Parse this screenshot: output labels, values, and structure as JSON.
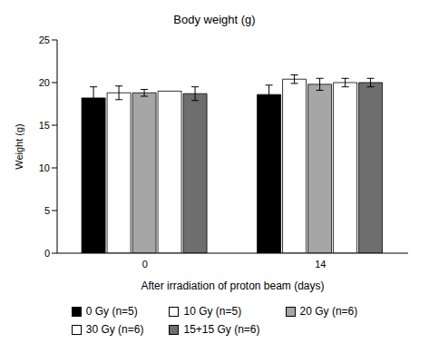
{
  "chart_data": {
    "type": "bar",
    "title": "Body weight (g)",
    "x_label": "After irradiation of proton beam (days)",
    "y_label": "Weight (g)",
    "categories": [
      "0",
      "14"
    ],
    "series": [
      {
        "name": "0 Gy (n=5)",
        "color": "#000000",
        "values": [
          18.2,
          18.6
        ],
        "errors": [
          1.3,
          1.1
        ]
      },
      {
        "name": "10 Gy (n=5)",
        "color": "#ffffff",
        "values": [
          18.8,
          20.4
        ],
        "errors": [
          0.8,
          0.5
        ]
      },
      {
        "name": "20 Gy (n=6)",
        "color": "#a6a6a6",
        "values": [
          18.8,
          19.8
        ],
        "errors": [
          0.4,
          0.7
        ]
      },
      {
        "name": "30 Gy (n=6)",
        "color": "#ffffff",
        "values": [
          19.0,
          20.0
        ],
        "errors": [
          0.0,
          0.5
        ]
      },
      {
        "name": "15+15 Gy (n=6)",
        "color": "#6e6e6e",
        "values": [
          18.7,
          20.0
        ],
        "errors": [
          0.8,
          0.5
        ]
      }
    ],
    "ylim": [
      0,
      25
    ],
    "yticks": [
      0,
      5,
      10,
      15,
      20,
      25
    ],
    "grid": false,
    "legend": "bottom"
  }
}
